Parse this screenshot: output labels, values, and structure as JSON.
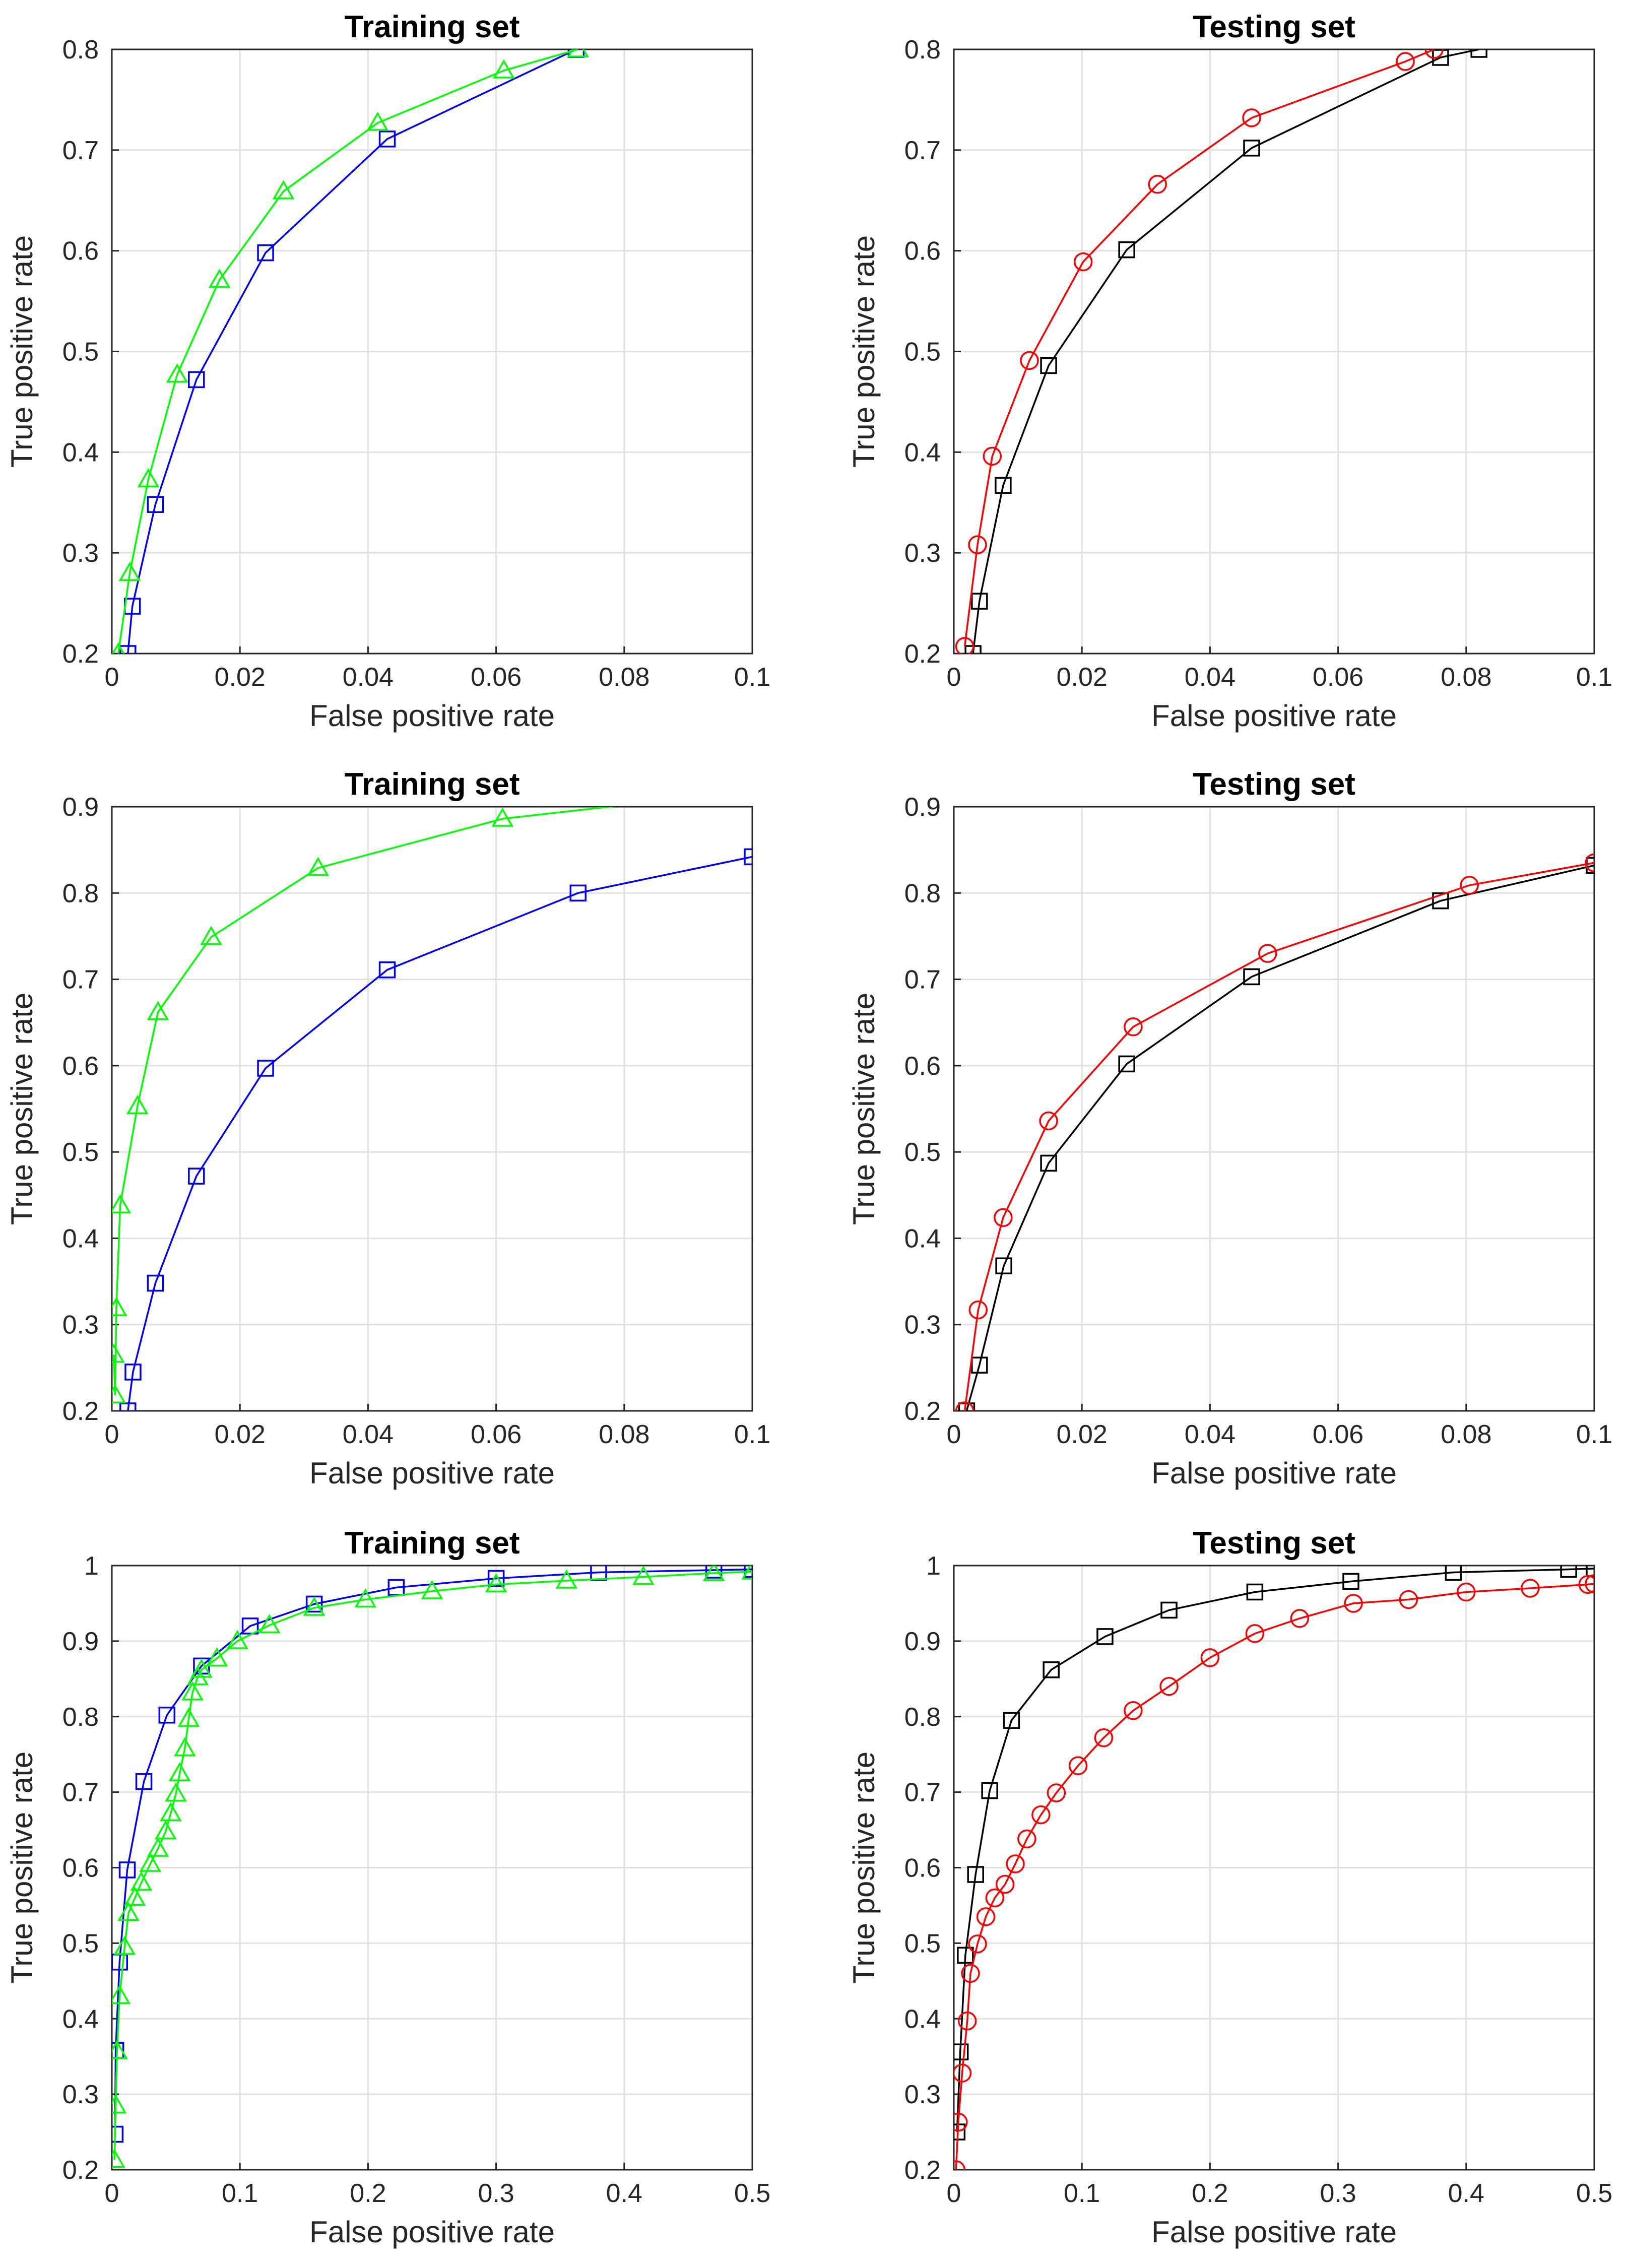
{
  "chart_data": [
    {
      "type": "line",
      "title": "Training set",
      "xlabel": "False positive rate",
      "ylabel": "True positive rate",
      "xlim": [
        0,
        0.1
      ],
      "ylim": [
        0.2,
        0.8
      ],
      "xticks": [
        0,
        0.02,
        0.04,
        0.06,
        0.08,
        0.1
      ],
      "xtick_labels": [
        "0",
        "0.02",
        "0.04",
        "0.06",
        "0.08",
        "0.1"
      ],
      "yticks": [
        0.2,
        0.3,
        0.4,
        0.5,
        0.6,
        0.7,
        0.8
      ],
      "ytick_labels": [
        "0.2",
        "0.3",
        "0.4",
        "0.5",
        "0.6",
        "0.7",
        "0.8"
      ],
      "grid": true,
      "series": [
        {
          "name": "blue-squares",
          "color": "#0000ff",
          "marker": "square",
          "x": [
            0.0025,
            0.0032,
            0.0068,
            0.0132,
            0.024,
            0.043,
            0.0725
          ],
          "y": [
            0.2,
            0.247,
            0.348,
            0.472,
            0.598,
            0.711,
            0.8
          ]
        },
        {
          "name": "green-triangles",
          "color": "#00ff00",
          "marker": "triangle",
          "x": [
            0.001,
            0.0028,
            0.0057,
            0.0102,
            0.0168,
            0.0268,
            0.0415,
            0.0612,
            0.0728
          ],
          "y": [
            0.2,
            0.28,
            0.373,
            0.477,
            0.571,
            0.659,
            0.727,
            0.779,
            0.8
          ]
        }
      ]
    },
    {
      "type": "line",
      "title": "Testing set",
      "xlabel": "False positive rate",
      "ylabel": "True positive rate",
      "xlim": [
        0,
        0.1
      ],
      "ylim": [
        0.2,
        0.8
      ],
      "xticks": [
        0,
        0.02,
        0.04,
        0.06,
        0.08,
        0.1
      ],
      "xtick_labels": [
        "0",
        "0.02",
        "0.04",
        "0.06",
        "0.08",
        "0.1"
      ],
      "yticks": [
        0.2,
        0.3,
        0.4,
        0.5,
        0.6,
        0.7,
        0.8
      ],
      "ytick_labels": [
        "0.2",
        "0.3",
        "0.4",
        "0.5",
        "0.6",
        "0.7",
        "0.8"
      ],
      "grid": true,
      "series": [
        {
          "name": "black-squares",
          "color": "#000000",
          "marker": "square",
          "x": [
            0.003,
            0.004,
            0.0077,
            0.0148,
            0.027,
            0.0465,
            0.076,
            0.082
          ],
          "y": [
            0.2,
            0.252,
            0.367,
            0.486,
            0.601,
            0.702,
            0.792,
            0.8
          ]
        },
        {
          "name": "red-circles",
          "color": "#ff0000",
          "marker": "circle",
          "x": [
            0.0017,
            0.0037,
            0.006,
            0.0118,
            0.0202,
            0.0318,
            0.0465,
            0.0705,
            0.075
          ],
          "y": [
            0.207,
            0.308,
            0.396,
            0.491,
            0.589,
            0.666,
            0.732,
            0.788,
            0.8
          ]
        }
      ]
    },
    {
      "type": "line",
      "title": "Training set",
      "xlabel": "False positive rate",
      "ylabel": "True positive rate",
      "xlim": [
        0,
        0.1
      ],
      "ylim": [
        0.2,
        0.9
      ],
      "xticks": [
        0,
        0.02,
        0.04,
        0.06,
        0.08,
        0.1
      ],
      "xtick_labels": [
        "0",
        "0.02",
        "0.04",
        "0.06",
        "0.08",
        "0.1"
      ],
      "yticks": [
        0.2,
        0.3,
        0.4,
        0.5,
        0.6,
        0.7,
        0.8,
        0.9
      ],
      "ytick_labels": [
        "0.2",
        "0.3",
        "0.4",
        "0.5",
        "0.6",
        "0.7",
        "0.8",
        "0.9"
      ],
      "grid": true,
      "series": [
        {
          "name": "blue-squares",
          "color": "#0000ff",
          "marker": "square",
          "x": [
            0.0025,
            0.0033,
            0.0068,
            0.0132,
            0.024,
            0.043,
            0.0728,
            0.1
          ],
          "y": [
            0.2,
            0.245,
            0.348,
            0.472,
            0.597,
            0.711,
            0.8,
            0.842
          ]
        },
        {
          "name": "green-triangles",
          "color": "#00ff00",
          "marker": "triangle",
          "x": [
            0.0003,
            0.0005,
            0.0007,
            0.0013,
            0.004,
            0.0072,
            0.0155,
            0.0322,
            0.061,
            0.08
          ],
          "y": [
            0.265,
            0.218,
            0.319,
            0.438,
            0.553,
            0.662,
            0.749,
            0.829,
            0.886,
            0.902
          ]
        }
      ]
    },
    {
      "type": "line",
      "title": "Testing set",
      "xlabel": "False positive rate",
      "ylabel": "True positive rate",
      "xlim": [
        0,
        0.1
      ],
      "ylim": [
        0.2,
        0.9
      ],
      "xticks": [
        0,
        0.02,
        0.04,
        0.06,
        0.08,
        0.1
      ],
      "xtick_labels": [
        "0",
        "0.02",
        "0.04",
        "0.06",
        "0.08",
        "0.1"
      ],
      "yticks": [
        0.2,
        0.3,
        0.4,
        0.5,
        0.6,
        0.7,
        0.8,
        0.9
      ],
      "ytick_labels": [
        "0.2",
        "0.3",
        "0.4",
        "0.5",
        "0.6",
        "0.7",
        "0.8",
        "0.9"
      ],
      "grid": true,
      "series": [
        {
          "name": "black-squares",
          "color": "#000000",
          "marker": "square",
          "x": [
            0.002,
            0.004,
            0.0078,
            0.0148,
            0.027,
            0.0465,
            0.076,
            0.1
          ],
          "y": [
            0.2,
            0.253,
            0.368,
            0.487,
            0.602,
            0.703,
            0.791,
            0.832
          ]
        },
        {
          "name": "red-circles",
          "color": "#ff0000",
          "marker": "circle",
          "x": [
            0.0017,
            0.0038,
            0.0077,
            0.0148,
            0.028,
            0.049,
            0.0805,
            0.1
          ],
          "y": [
            0.2,
            0.317,
            0.424,
            0.536,
            0.645,
            0.73,
            0.809,
            0.835
          ]
        }
      ]
    },
    {
      "type": "line",
      "title": "Training set",
      "xlabel": "False positive rate",
      "ylabel": "True positive rate",
      "xlim": [
        0,
        0.5
      ],
      "ylim": [
        0.2,
        1
      ],
      "xticks": [
        0,
        0.1,
        0.2,
        0.3,
        0.4,
        0.5
      ],
      "xtick_labels": [
        "0",
        "0.1",
        "0.2",
        "0.3",
        "0.4",
        "0.5"
      ],
      "yticks": [
        0.2,
        0.3,
        0.4,
        0.5,
        0.6,
        0.7,
        0.8,
        0.9,
        1
      ],
      "ytick_labels": [
        "0.2",
        "0.3",
        "0.4",
        "0.5",
        "0.6",
        "0.7",
        "0.8",
        "0.9",
        "1"
      ],
      "grid": true,
      "series": [
        {
          "name": "blue-squares",
          "color": "#0000ff",
          "marker": "square",
          "x": [
            0.0025,
            0.003,
            0.006,
            0.012,
            0.025,
            0.043,
            0.07,
            0.108,
            0.158,
            0.222,
            0.3,
            0.38,
            0.47,
            0.5
          ],
          "y": [
            0.247,
            0.358,
            0.475,
            0.597,
            0.714,
            0.802,
            0.867,
            0.92,
            0.949,
            0.971,
            0.983,
            0.991,
            0.994,
            0.995
          ]
        },
        {
          "name": "green-triangles",
          "color": "#00ff00",
          "marker": "triangle",
          "x": [
            0.002,
            0.003,
            0.004,
            0.006,
            0.01,
            0.013,
            0.018,
            0.023,
            0.03,
            0.036,
            0.042,
            0.046,
            0.05,
            0.053,
            0.057,
            0.06,
            0.063,
            0.067,
            0.07,
            0.082,
            0.098,
            0.123,
            0.158,
            0.198,
            0.25,
            0.3,
            0.355,
            0.415,
            0.47,
            0.5
          ],
          "y": [
            0.213,
            0.285,
            0.357,
            0.43,
            0.495,
            0.54,
            0.56,
            0.58,
            0.605,
            0.625,
            0.648,
            0.672,
            0.698,
            0.725,
            0.758,
            0.797,
            0.832,
            0.852,
            0.862,
            0.877,
            0.9,
            0.921,
            0.944,
            0.955,
            0.966,
            0.975,
            0.98,
            0.985,
            0.99,
            0.992
          ]
        }
      ]
    },
    {
      "type": "line",
      "title": "Testing set",
      "xlabel": "False positive rate",
      "ylabel": "True positive rate",
      "xlim": [
        0,
        0.5
      ],
      "ylim": [
        0.2,
        1
      ],
      "xticks": [
        0,
        0.1,
        0.2,
        0.3,
        0.4,
        0.5
      ],
      "xtick_labels": [
        "0",
        "0.1",
        "0.2",
        "0.3",
        "0.4",
        "0.5"
      ],
      "yticks": [
        0.2,
        0.3,
        0.4,
        0.5,
        0.6,
        0.7,
        0.8,
        0.9,
        1
      ],
      "ytick_labels": [
        "0.2",
        "0.3",
        "0.4",
        "0.5",
        "0.6",
        "0.7",
        "0.8",
        "0.9",
        "1"
      ],
      "grid": true,
      "series": [
        {
          "name": "black-squares",
          "color": "#000000",
          "marker": "square",
          "x": [
            0.0025,
            0.005,
            0.009,
            0.017,
            0.028,
            0.045,
            0.076,
            0.118,
            0.168,
            0.235,
            0.31,
            0.39,
            0.48,
            0.5
          ],
          "y": [
            0.25,
            0.356,
            0.484,
            0.591,
            0.702,
            0.795,
            0.862,
            0.906,
            0.941,
            0.965,
            0.979,
            0.991,
            0.995,
            0.996
          ]
        },
        {
          "name": "red-circles",
          "color": "#ff0000",
          "marker": "circle",
          "x": [
            0.0017,
            0.0035,
            0.0065,
            0.0105,
            0.013,
            0.0185,
            0.025,
            0.032,
            0.04,
            0.048,
            0.057,
            0.068,
            0.08,
            0.097,
            0.117,
            0.14,
            0.168,
            0.2,
            0.235,
            0.27,
            0.312,
            0.355,
            0.4,
            0.45,
            0.495,
            0.5
          ],
          "y": [
            0.2,
            0.263,
            0.328,
            0.397,
            0.46,
            0.499,
            0.535,
            0.56,
            0.578,
            0.605,
            0.638,
            0.67,
            0.699,
            0.735,
            0.772,
            0.808,
            0.84,
            0.878,
            0.91,
            0.93,
            0.95,
            0.955,
            0.965,
            0.97,
            0.975,
            0.976
          ]
        }
      ]
    }
  ]
}
